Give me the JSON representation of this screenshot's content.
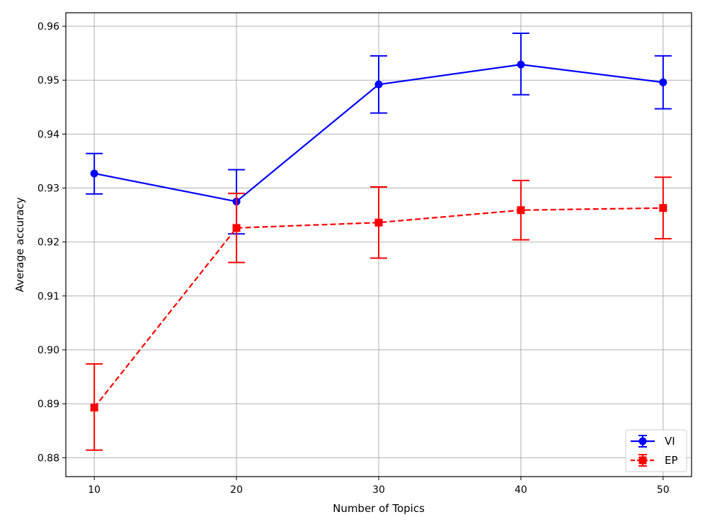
{
  "chart_data": {
    "type": "line",
    "title": "",
    "xlabel": "Number of Topics",
    "ylabel": "Average accuracy",
    "x": [
      10,
      20,
      30,
      40,
      50
    ],
    "xlim": [
      8,
      52
    ],
    "ylim": [
      0.8765,
      0.9625
    ],
    "xticks": [
      "10",
      "20",
      "30",
      "40",
      "50"
    ],
    "yticks": [
      "0.88",
      "0.89",
      "0.90",
      "0.91",
      "0.92",
      "0.93",
      "0.94",
      "0.95",
      "0.96"
    ],
    "grid": true,
    "legend_position": "lower-right",
    "series": [
      {
        "name": "VI",
        "color": "#0000ff",
        "marker": "circle",
        "linestyle": "solid",
        "values": [
          0.9327,
          0.9275,
          0.9492,
          0.9529,
          0.9496
        ],
        "err_low": [
          0.9289,
          0.9215,
          0.9439,
          0.9473,
          0.9447
        ],
        "err_high": [
          0.9364,
          0.9334,
          0.9545,
          0.9587,
          0.9545
        ]
      },
      {
        "name": "EP",
        "color": "#ff0000",
        "marker": "square",
        "linestyle": "dashed",
        "values": [
          0.8893,
          0.9226,
          0.9236,
          0.9259,
          0.9263
        ],
        "err_low": [
          0.8814,
          0.9162,
          0.917,
          0.9204,
          0.9206
        ],
        "err_high": [
          0.8974,
          0.929,
          0.9302,
          0.9314,
          0.932
        ]
      }
    ]
  }
}
